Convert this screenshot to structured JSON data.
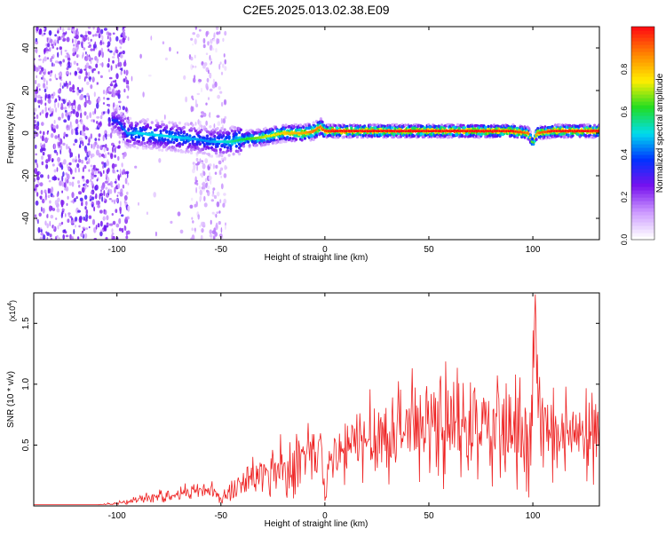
{
  "title": "C2E5.2025.013.02.38.E09",
  "colors": {
    "snr_line": "#ee2222",
    "colormap": [
      "#ffffff",
      "#cc99ff",
      "#7711ee",
      "#0033ff",
      "#00ddee",
      "#22dd22",
      "#ffee00",
      "#ff8800",
      "#ff1111"
    ]
  },
  "chart_data": [
    {
      "type": "heatmap",
      "xlabel": "Height of straight line (km)",
      "ylabel": "Frequency (Hz)",
      "xlim": [
        -140,
        132
      ],
      "ylim": [
        -50,
        50
      ],
      "xticks": [
        -100,
        -50,
        0,
        50,
        100
      ],
      "yticks": [
        -40,
        -20,
        0,
        20,
        40
      ],
      "colorbar": {
        "label": "Normalized spectral amplitude",
        "range": [
          0.0,
          1.0
        ],
        "ticks": [
          "0.0",
          "0.2",
          "0.4",
          "0.6",
          "0.8"
        ]
      },
      "ridge": {
        "description_points_x": [
          -100,
          -95,
          -90,
          -80,
          -70,
          -60,
          -55,
          -50,
          -45,
          -40,
          -30,
          -20,
          -10,
          -5,
          -2,
          0,
          5,
          20,
          50,
          90,
          98,
          100,
          102,
          110,
          132
        ],
        "frequency_y": [
          6,
          0,
          0,
          -1,
          -2,
          -3,
          -4,
          -4,
          -4,
          -3,
          -2,
          0,
          0,
          1,
          3,
          1,
          1,
          1,
          1,
          1,
          0,
          -5,
          0,
          1,
          1
        ],
        "amplitude": [
          0.35,
          0.45,
          0.5,
          0.5,
          0.5,
          0.45,
          0.45,
          0.5,
          0.55,
          0.6,
          0.7,
          0.8,
          0.85,
          0.9,
          0.9,
          0.95,
          1.0,
          1.0,
          1.0,
          1.0,
          0.9,
          0.6,
          0.9,
          1.0,
          1.0
        ]
      }
    },
    {
      "type": "line",
      "xlabel": "Height of straight line (km)",
      "ylabel": "SNR (10 * v/v)",
      "y_multiplier": "(x10",
      "y_multiplier_exp": "4",
      "y_multiplier_close": ")",
      "xlim": [
        -140,
        132
      ],
      "ylim": [
        0,
        1.75
      ],
      "xticks": [
        -100,
        -50,
        0,
        50,
        100
      ],
      "yticks": [
        "0.5",
        "1.0",
        "1.5"
      ],
      "ytick_values": [
        0.5,
        1.0,
        1.5
      ],
      "series": [
        {
          "x": [
            -140,
            -130,
            -120,
            -110,
            -100,
            -95,
            -90,
            -80,
            -70,
            -60,
            -55,
            -50,
            -45,
            -40,
            -35,
            -30,
            -25,
            -20,
            -15,
            -10,
            -5,
            -2,
            0,
            2,
            5,
            10,
            15,
            20,
            25,
            30,
            35,
            40,
            50,
            60,
            70,
            80,
            90,
            95,
            98,
            100,
            101,
            102,
            105,
            110,
            120,
            132
          ],
          "y": [
            0.01,
            0.01,
            0.01,
            0.01,
            0.02,
            0.03,
            0.06,
            0.08,
            0.1,
            0.13,
            0.14,
            0.05,
            0.12,
            0.18,
            0.22,
            0.25,
            0.3,
            0.3,
            0.35,
            0.38,
            0.42,
            0.5,
            0.02,
            0.3,
            0.4,
            0.45,
            0.5,
            0.55,
            0.58,
            0.6,
            0.62,
            0.65,
            0.65,
            0.63,
            0.62,
            0.6,
            0.6,
            0.58,
            0.3,
            1.0,
            1.7,
            0.9,
            0.55,
            0.55,
            0.55,
            0.55
          ],
          "spike_amplitude": [
            0.0,
            0.0,
            0.0,
            0.0,
            0.01,
            0.02,
            0.03,
            0.04,
            0.05,
            0.06,
            0.06,
            0.04,
            0.08,
            0.1,
            0.12,
            0.15,
            0.2,
            0.2,
            0.22,
            0.22,
            0.22,
            0.25,
            0.05,
            0.2,
            0.22,
            0.25,
            0.25,
            0.28,
            0.3,
            0.3,
            0.3,
            0.3,
            0.32,
            0.35,
            0.35,
            0.35,
            0.35,
            0.35,
            0.3,
            0.35,
            0.1,
            0.35,
            0.3,
            0.28,
            0.28,
            0.28
          ]
        }
      ]
    }
  ]
}
